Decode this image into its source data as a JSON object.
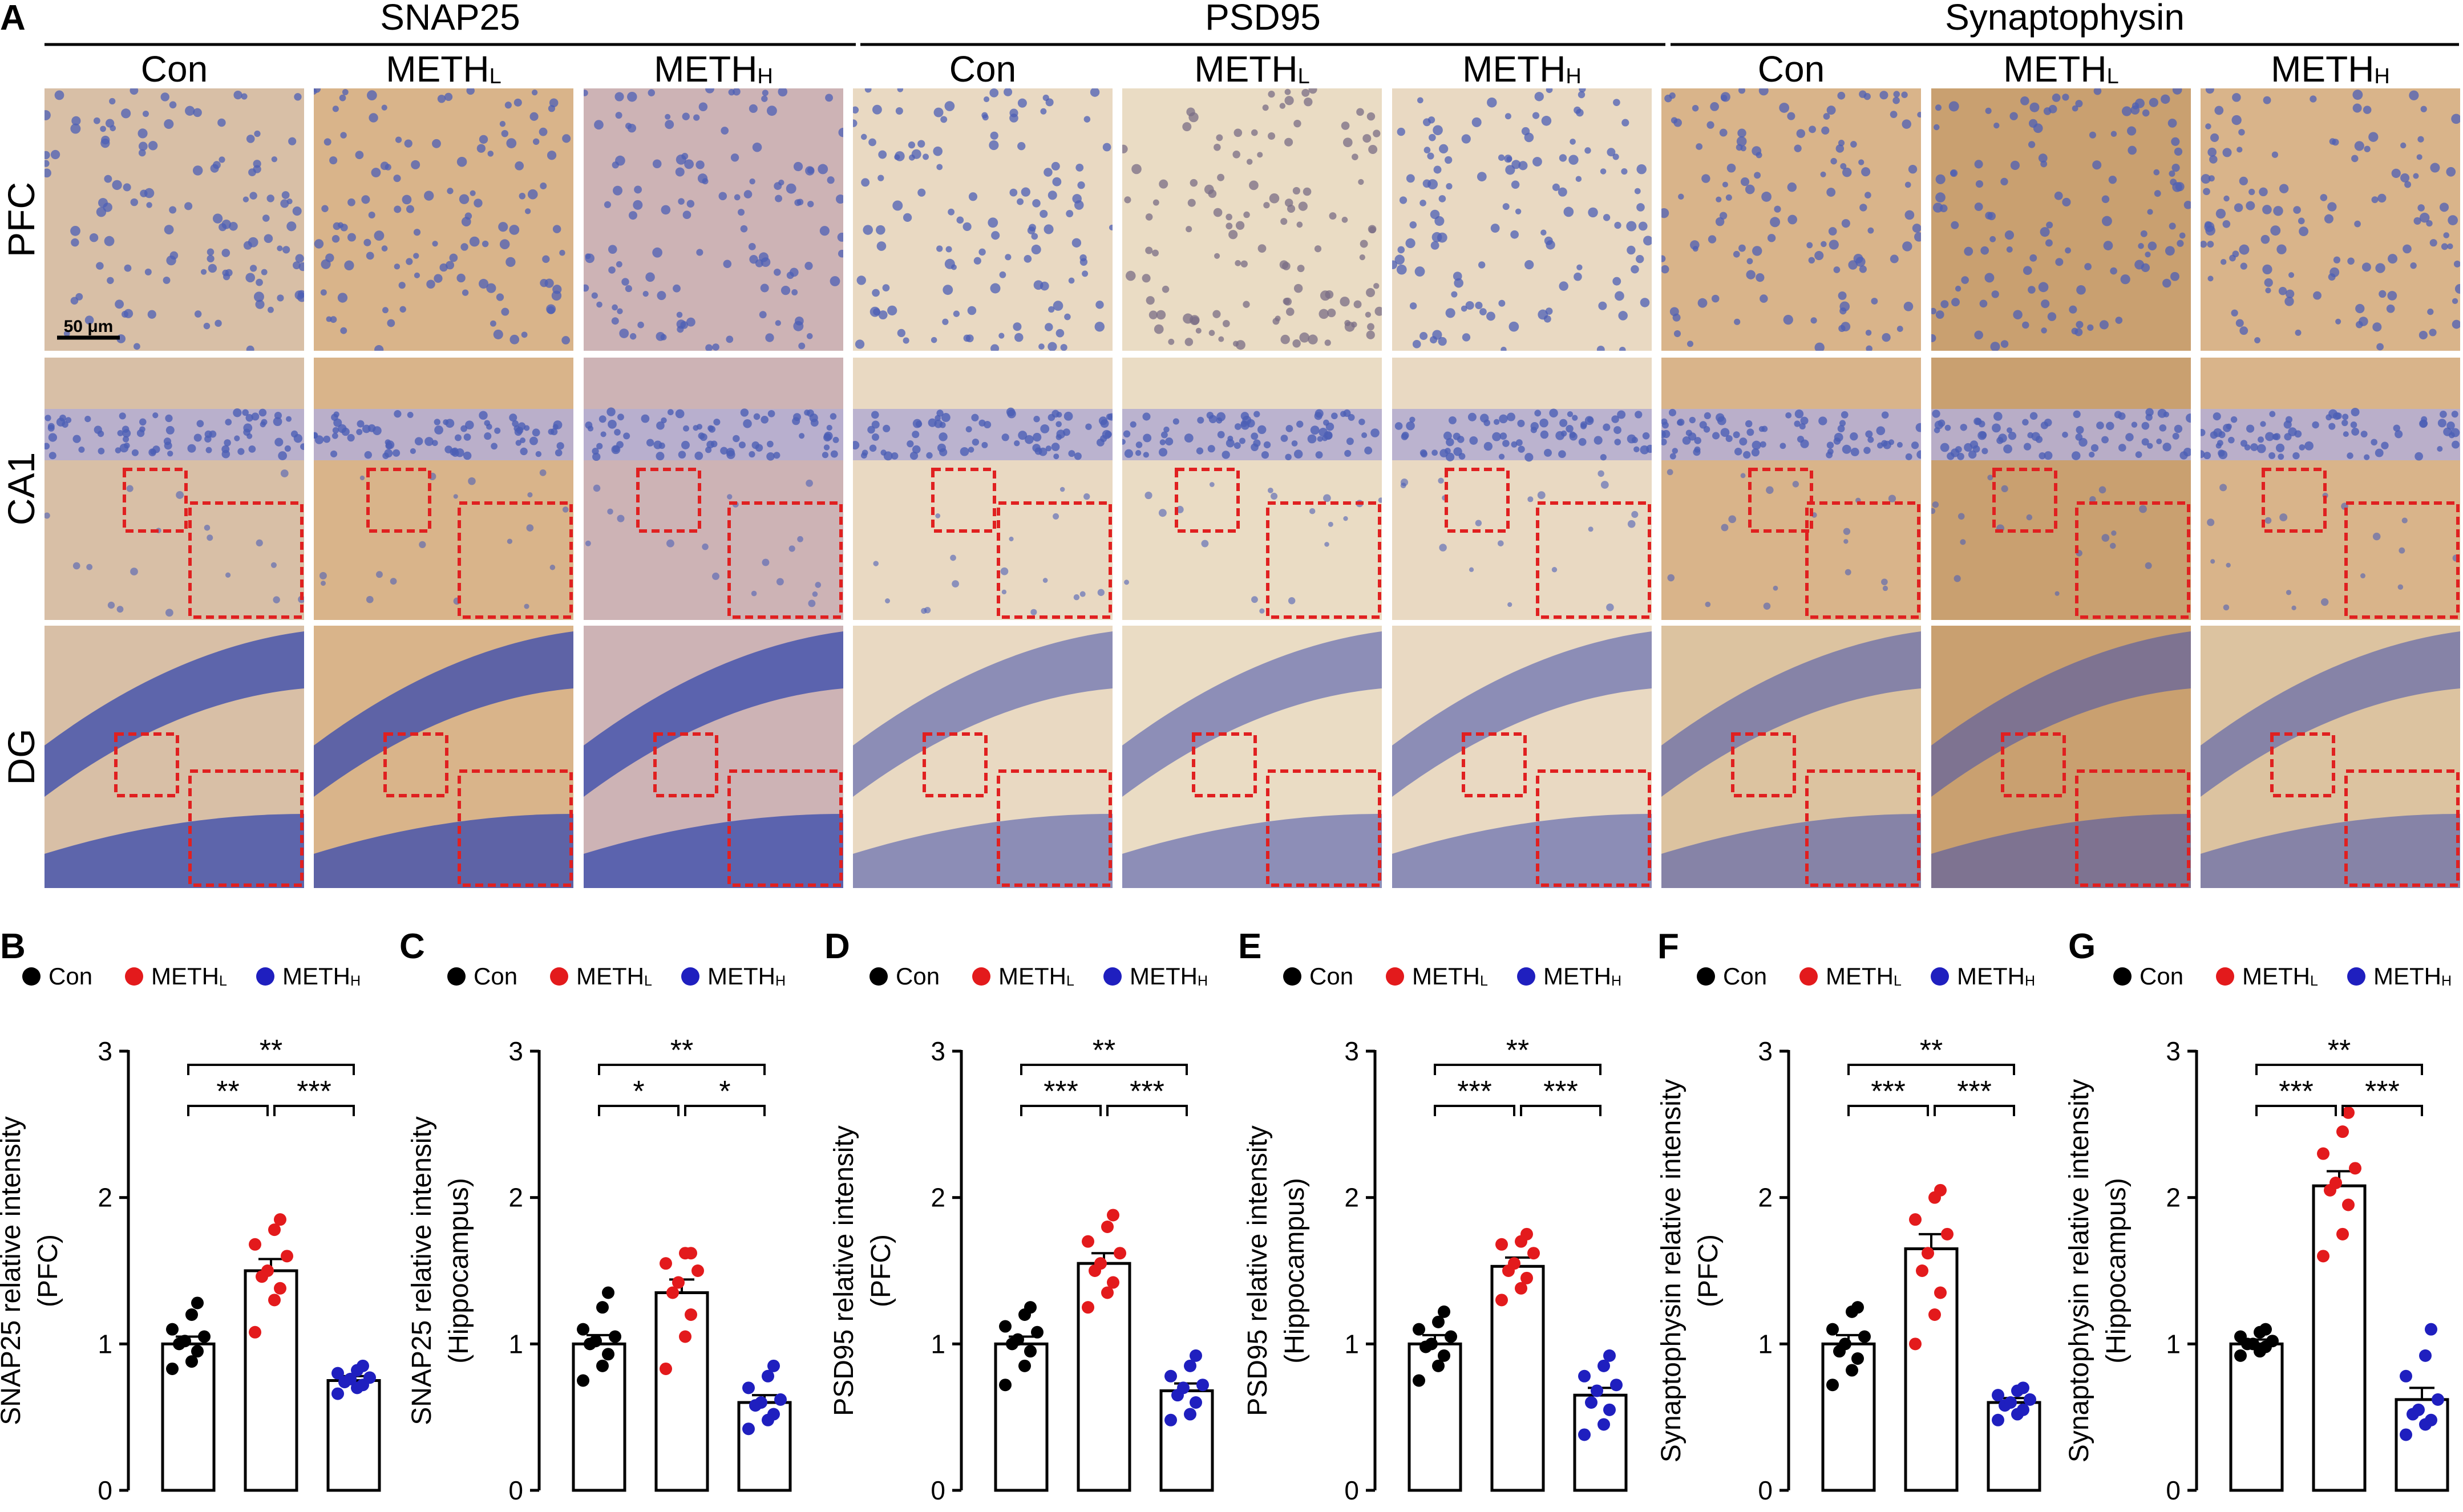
{
  "panel_a": {
    "label": "A",
    "stains": [
      "SNAP25",
      "PSD95",
      "Synaptophysin"
    ],
    "groups": [
      {
        "name": "Con",
        "sub": ""
      },
      {
        "name": "METH",
        "sub": "L"
      },
      {
        "name": "METH",
        "sub": "H"
      }
    ],
    "regions": [
      "PFC",
      "CA1",
      "DG"
    ],
    "scale_bar": "50 μm",
    "colors": {
      "brown": "#d9b48a",
      "brown_dark": "#c9a070",
      "tan": "#e5cfb0",
      "violet": "#b6aed0",
      "blue_cell": "#4c5fb5",
      "blue_layer": "#3f4fad",
      "box": "#e02020"
    }
  },
  "legend": {
    "items": [
      {
        "name": "Con",
        "sub": "",
        "color": "#000000"
      },
      {
        "name": "METH",
        "sub": "L",
        "color": "#e31a1c"
      },
      {
        "name": "METH",
        "sub": "H",
        "color": "#1f1fbf"
      }
    ]
  },
  "chart_data": [
    {
      "panel": "B",
      "type": "bar",
      "ylabel": "SNAP25 relative intensity",
      "ylabel2": "(PFC)",
      "ylim": [
        0,
        3
      ],
      "yticks": [
        "0",
        "1",
        "2",
        "3"
      ],
      "categories": [
        "Con",
        "METH_L",
        "METH_H"
      ],
      "means": [
        1.0,
        1.5,
        0.75
      ],
      "sems": [
        0.05,
        0.08,
        0.03
      ],
      "points": [
        [
          0.83,
          0.88,
          0.95,
          1.0,
          1.02,
          1.05,
          1.1,
          1.2,
          1.28
        ],
        [
          1.08,
          1.3,
          1.38,
          1.46,
          1.5,
          1.6,
          1.68,
          1.78,
          1.85
        ],
        [
          0.66,
          0.7,
          0.72,
          0.74,
          0.76,
          0.77,
          0.8,
          0.82,
          0.85
        ]
      ],
      "significance": [
        {
          "from": 0,
          "to": 1,
          "label": "**"
        },
        {
          "from": 1,
          "to": 2,
          "label": "***"
        },
        {
          "from": 0,
          "to": 2,
          "label": "**"
        }
      ]
    },
    {
      "panel": "C",
      "type": "bar",
      "ylabel": "SNAP25 relative intensity",
      "ylabel2": "(Hippocampus)",
      "ylim": [
        0,
        3
      ],
      "yticks": [
        "0",
        "1",
        "2",
        "3"
      ],
      "categories": [
        "Con",
        "METH_L",
        "METH_H"
      ],
      "means": [
        1.0,
        1.35,
        0.6
      ],
      "sems": [
        0.06,
        0.09,
        0.05
      ],
      "points": [
        [
          0.75,
          0.85,
          0.93,
          1.0,
          1.02,
          1.05,
          1.1,
          1.25,
          1.35
        ],
        [
          0.83,
          1.05,
          1.2,
          1.35,
          1.42,
          1.5,
          1.55,
          1.62,
          1.62
        ],
        [
          0.42,
          0.48,
          0.52,
          0.58,
          0.6,
          0.62,
          0.7,
          0.78,
          0.85
        ]
      ],
      "significance": [
        {
          "from": 0,
          "to": 1,
          "label": "*"
        },
        {
          "from": 1,
          "to": 2,
          "label": "*"
        },
        {
          "from": 0,
          "to": 2,
          "label": "**"
        }
      ]
    },
    {
      "panel": "D",
      "type": "bar",
      "ylabel": "PSD95 relative intensity",
      "ylabel2": "(PFC)",
      "ylim": [
        0,
        3
      ],
      "yticks": [
        "0",
        "1",
        "2",
        "3"
      ],
      "categories": [
        "Con",
        "METH_L",
        "METH_H"
      ],
      "means": [
        1.0,
        1.55,
        0.68
      ],
      "sems": [
        0.05,
        0.07,
        0.05
      ],
      "points": [
        [
          0.72,
          0.85,
          0.95,
          1.0,
          1.03,
          1.08,
          1.12,
          1.2,
          1.25
        ],
        [
          1.25,
          1.35,
          1.42,
          1.5,
          1.55,
          1.62,
          1.7,
          1.8,
          1.88
        ],
        [
          0.48,
          0.52,
          0.6,
          0.65,
          0.7,
          0.72,
          0.78,
          0.85,
          0.92
        ]
      ],
      "significance": [
        {
          "from": 0,
          "to": 1,
          "label": "***"
        },
        {
          "from": 1,
          "to": 2,
          "label": "***"
        },
        {
          "from": 0,
          "to": 2,
          "label": "**"
        }
      ]
    },
    {
      "panel": "E",
      "type": "bar",
      "ylabel": "PSD95 relative intensity",
      "ylabel2": "(Hippocampus)",
      "ylim": [
        0,
        3
      ],
      "yticks": [
        "0",
        "1",
        "2",
        "3"
      ],
      "categories": [
        "Con",
        "METH_L",
        "METH_H"
      ],
      "means": [
        1.0,
        1.53,
        0.65
      ],
      "sems": [
        0.06,
        0.06,
        0.05
      ],
      "points": [
        [
          0.75,
          0.85,
          0.92,
          0.98,
          1.0,
          1.05,
          1.1,
          1.15,
          1.22
        ],
        [
          1.3,
          1.38,
          1.45,
          1.5,
          1.55,
          1.62,
          1.68,
          1.7,
          1.75
        ],
        [
          0.38,
          0.45,
          0.55,
          0.6,
          0.68,
          0.72,
          0.78,
          0.85,
          0.92
        ]
      ],
      "significance": [
        {
          "from": 0,
          "to": 1,
          "label": "***"
        },
        {
          "from": 1,
          "to": 2,
          "label": "***"
        },
        {
          "from": 0,
          "to": 2,
          "label": "**"
        }
      ]
    },
    {
      "panel": "F",
      "type": "bar",
      "ylabel": "Synaptophysin relative intensity",
      "ylabel2": "(PFC)",
      "ylim": [
        0,
        3
      ],
      "yticks": [
        "0",
        "1",
        "2",
        "3"
      ],
      "categories": [
        "Con",
        "METH_L",
        "METH_H"
      ],
      "means": [
        1.0,
        1.65,
        0.6
      ],
      "sems": [
        0.06,
        0.1,
        0.03
      ],
      "points": [
        [
          0.72,
          0.82,
          0.9,
          0.95,
          1.0,
          1.05,
          1.1,
          1.22,
          1.25
        ],
        [
          1.0,
          1.2,
          1.35,
          1.5,
          1.62,
          1.75,
          1.85,
          2.0,
          2.05
        ],
        [
          0.48,
          0.52,
          0.55,
          0.58,
          0.6,
          0.62,
          0.65,
          0.68,
          0.7
        ]
      ],
      "significance": [
        {
          "from": 0,
          "to": 1,
          "label": "***"
        },
        {
          "from": 1,
          "to": 2,
          "label": "***"
        },
        {
          "from": 0,
          "to": 2,
          "label": "**"
        }
      ]
    },
    {
      "panel": "G",
      "type": "bar",
      "ylabel": "Synaptophysin relative intensity",
      "ylabel2": "(Hippocampus)",
      "ylim": [
        0,
        3
      ],
      "yticks": [
        "0",
        "1",
        "2",
        "3"
      ],
      "categories": [
        "Con",
        "METH_L",
        "METH_H"
      ],
      "means": [
        1.0,
        2.08,
        0.62
      ],
      "sems": [
        0.03,
        0.1,
        0.08
      ],
      "points": [
        [
          0.92,
          0.95,
          0.98,
          1.0,
          1.0,
          1.02,
          1.05,
          1.08,
          1.1
        ],
        [
          1.6,
          1.75,
          1.95,
          2.05,
          2.1,
          2.2,
          2.3,
          2.45,
          2.58
        ],
        [
          0.38,
          0.45,
          0.48,
          0.52,
          0.55,
          0.62,
          0.78,
          0.92,
          1.1
        ]
      ],
      "significance": [
        {
          "from": 0,
          "to": 1,
          "label": "***"
        },
        {
          "from": 1,
          "to": 2,
          "label": "***"
        },
        {
          "from": 0,
          "to": 2,
          "label": "**"
        }
      ]
    }
  ]
}
